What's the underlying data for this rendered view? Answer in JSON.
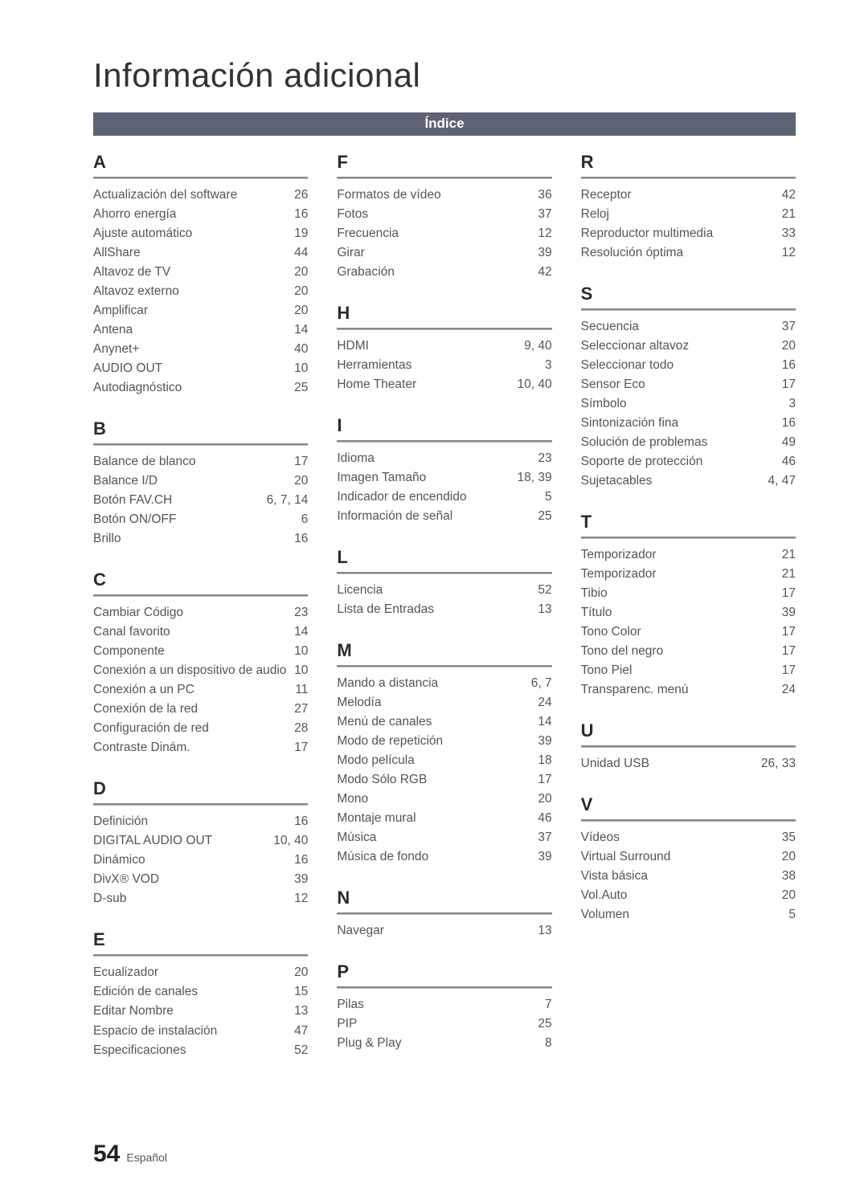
{
  "page_title": "Información adicional",
  "banner": "Índice",
  "footer": {
    "page_number": "54",
    "language": "Español"
  },
  "styling": {
    "page_bg": "#ffffff",
    "text_color": "#555555",
    "heading_color": "#2b2b2b",
    "banner_bg": "#5e6373",
    "banner_text": "#ffffff",
    "title_fontsize_pt": 32,
    "letter_fontsize_pt": 16,
    "entry_fontsize_pt": 11.5,
    "rule_color_top": "#888888",
    "rule_color_bottom": "#bbbbbb",
    "font_family": "Arial"
  },
  "columns": [
    [
      {
        "letter": "A",
        "entries": [
          {
            "label": "Actualización del software",
            "page": "26"
          },
          {
            "label": "Ahorro energía",
            "page": "16"
          },
          {
            "label": "Ajuste automático",
            "page": "19"
          },
          {
            "label": "AllShare",
            "page": "44"
          },
          {
            "label": "Altavoz de TV",
            "page": "20"
          },
          {
            "label": "Altavoz externo",
            "page": "20"
          },
          {
            "label": "Amplificar",
            "page": "20"
          },
          {
            "label": "Antena",
            "page": "14"
          },
          {
            "label": "Anynet+",
            "page": "40"
          },
          {
            "label": "AUDIO OUT",
            "page": "10"
          },
          {
            "label": "Autodiagnóstico",
            "page": "25"
          }
        ]
      },
      {
        "letter": "B",
        "entries": [
          {
            "label": "Balance de blanco",
            "page": "17"
          },
          {
            "label": "Balance I/D",
            "page": "20"
          },
          {
            "label": "Botón FAV.CH",
            "page": "6, 7, 14"
          },
          {
            "label": "Botón ON/OFF",
            "page": "6"
          },
          {
            "label": "Brillo",
            "page": "16"
          }
        ]
      },
      {
        "letter": "C",
        "entries": [
          {
            "label": "Cambiar Código",
            "page": "23"
          },
          {
            "label": "Canal favorito",
            "page": "14"
          },
          {
            "label": "Componente",
            "page": "10"
          },
          {
            "label": "Conexión a un dispositivo de audio",
            "page": "10"
          },
          {
            "label": "Conexión a un PC",
            "page": "11"
          },
          {
            "label": "Conexión de la red",
            "page": "27"
          },
          {
            "label": "Configuración de red",
            "page": "28"
          },
          {
            "label": "Contraste Dinám.",
            "page": "17"
          }
        ]
      },
      {
        "letter": "D",
        "entries": [
          {
            "label": "Definición",
            "page": "16"
          },
          {
            "label": "DIGITAL AUDIO OUT",
            "page": "10, 40"
          },
          {
            "label": "Dinámico",
            "page": "16"
          },
          {
            "label": "DivX® VOD",
            "page": "39"
          },
          {
            "label": "D-sub",
            "page": "12"
          }
        ]
      },
      {
        "letter": "E",
        "entries": [
          {
            "label": "Ecualizador",
            "page": "20"
          },
          {
            "label": "Edición de canales",
            "page": "15"
          },
          {
            "label": "Editar Nombre",
            "page": "13"
          },
          {
            "label": "Espacio de instalación",
            "page": "47"
          },
          {
            "label": "Especificaciones",
            "page": "52"
          }
        ]
      }
    ],
    [
      {
        "letter": "F",
        "entries": [
          {
            "label": "Formatos de vídeo",
            "page": "36"
          },
          {
            "label": "Fotos",
            "page": "37"
          },
          {
            "label": "Frecuencia",
            "page": "12"
          },
          {
            "label": "Girar",
            "page": "39"
          },
          {
            "label": "Grabación",
            "page": "42"
          }
        ]
      },
      {
        "letter": "H",
        "entries": [
          {
            "label": "HDMI",
            "page": "9, 40"
          },
          {
            "label": "Herramientas",
            "page": "3"
          },
          {
            "label": "Home Theater",
            "page": "10, 40"
          }
        ]
      },
      {
        "letter": "I",
        "entries": [
          {
            "label": "Idioma",
            "page": "23"
          },
          {
            "label": "Imagen Tamaño",
            "page": "18, 39"
          },
          {
            "label": "Indicador de encendido",
            "page": "5"
          },
          {
            "label": "Información de señal",
            "page": "25"
          }
        ]
      },
      {
        "letter": "L",
        "entries": [
          {
            "label": "Licencia",
            "page": "52"
          },
          {
            "label": "Lista de Entradas",
            "page": "13"
          }
        ]
      },
      {
        "letter": "M",
        "entries": [
          {
            "label": "Mando a distancia",
            "page": "6, 7"
          },
          {
            "label": "Melodía",
            "page": "24"
          },
          {
            "label": "Menú de canales",
            "page": "14"
          },
          {
            "label": "Modo de repetición",
            "page": "39"
          },
          {
            "label": "Modo película",
            "page": "18"
          },
          {
            "label": "Modo Sólo RGB",
            "page": "17"
          },
          {
            "label": "Mono",
            "page": "20"
          },
          {
            "label": "Montaje mural",
            "page": "46"
          },
          {
            "label": "Música",
            "page": "37"
          },
          {
            "label": "Música de fondo",
            "page": "39"
          }
        ]
      },
      {
        "letter": "N",
        "entries": [
          {
            "label": "Navegar",
            "page": "13"
          }
        ]
      },
      {
        "letter": "P",
        "entries": [
          {
            "label": "Pilas",
            "page": "7"
          },
          {
            "label": "PIP",
            "page": "25"
          },
          {
            "label": "Plug & Play",
            "page": "8"
          }
        ]
      }
    ],
    [
      {
        "letter": "R",
        "entries": [
          {
            "label": "Receptor",
            "page": "42"
          },
          {
            "label": "Reloj",
            "page": "21"
          },
          {
            "label": "Reproductor multimedia",
            "page": "33"
          },
          {
            "label": "Resolución óptima",
            "page": "12"
          }
        ]
      },
      {
        "letter": "S",
        "entries": [
          {
            "label": "Secuencia",
            "page": "37"
          },
          {
            "label": "Seleccionar altavoz",
            "page": "20"
          },
          {
            "label": "Seleccionar todo",
            "page": "16"
          },
          {
            "label": "Sensor Eco",
            "page": "17"
          },
          {
            "label": "Símbolo",
            "page": "3"
          },
          {
            "label": "Sintonización fina",
            "page": "16"
          },
          {
            "label": "Solución de problemas",
            "page": "49"
          },
          {
            "label": "Soporte de protección",
            "page": "46"
          },
          {
            "label": "Sujetacables",
            "page": "4, 47"
          }
        ]
      },
      {
        "letter": "T",
        "entries": [
          {
            "label": "Temporizador",
            "page": "21"
          },
          {
            "label": "Temporizador",
            "page": "21"
          },
          {
            "label": "Tibio",
            "page": "17"
          },
          {
            "label": "Título",
            "page": "39"
          },
          {
            "label": "Tono Color",
            "page": "17"
          },
          {
            "label": "Tono del negro",
            "page": "17"
          },
          {
            "label": "Tono Piel",
            "page": "17"
          },
          {
            "label": "Transparenc. menú",
            "page": "24"
          }
        ]
      },
      {
        "letter": "U",
        "entries": [
          {
            "label": "Unidad USB",
            "page": "26, 33"
          }
        ]
      },
      {
        "letter": "V",
        "entries": [
          {
            "label": "Vídeos",
            "page": "35"
          },
          {
            "label": "Virtual Surround",
            "page": "20"
          },
          {
            "label": "Vista básica",
            "page": "38"
          },
          {
            "label": "Vol.Auto",
            "page": "20"
          },
          {
            "label": "Volumen",
            "page": "5"
          }
        ]
      }
    ]
  ]
}
